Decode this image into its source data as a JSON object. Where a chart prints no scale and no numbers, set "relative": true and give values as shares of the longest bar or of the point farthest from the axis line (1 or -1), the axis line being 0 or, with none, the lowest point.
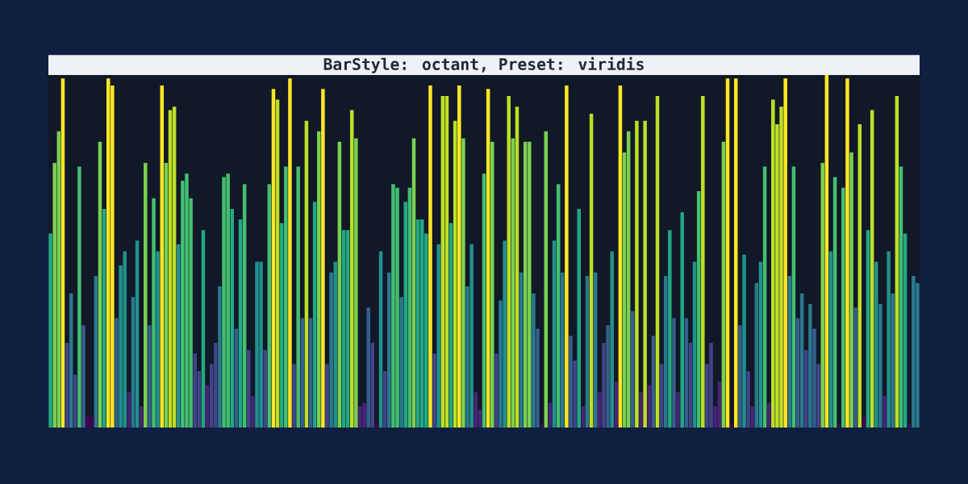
{
  "chart_data": {
    "type": "bar",
    "title": "BarStyle: octant, Preset: viridis",
    "relative": true,
    "categories": [
      null,
      null,
      null,
      null,
      null,
      null,
      null,
      null,
      null,
      null,
      null,
      null,
      null,
      null,
      null,
      null,
      null,
      null,
      null,
      null,
      null,
      null,
      null,
      null,
      null,
      null,
      null,
      null,
      null,
      null,
      null,
      null,
      null,
      null,
      null,
      null,
      null,
      null,
      null,
      null,
      null,
      null,
      null,
      null,
      null,
      null,
      null,
      null,
      null,
      null,
      null,
      null,
      null,
      null,
      null,
      null,
      null,
      null,
      null,
      null,
      null,
      null,
      null,
      null,
      null,
      null,
      null,
      null,
      null,
      null,
      null,
      null,
      null,
      null,
      null,
      null,
      null,
      null,
      null,
      null,
      null,
      null,
      null,
      null,
      null,
      null,
      null,
      null,
      null,
      null,
      null,
      null,
      null,
      null,
      null,
      null,
      null,
      null,
      null,
      null,
      null,
      null,
      null,
      null,
      null,
      null,
      null,
      null,
      null,
      null,
      null,
      null,
      null,
      null,
      null,
      null,
      null,
      null,
      null,
      null,
      null,
      null,
      null,
      null,
      null,
      null,
      null,
      null,
      null,
      null,
      null,
      null,
      null,
      null,
      null,
      null,
      null,
      null,
      null,
      null,
      null,
      null,
      null,
      null,
      null,
      null,
      null,
      null,
      null,
      null,
      null,
      null,
      null,
      null,
      null,
      null,
      null,
      null,
      null,
      null,
      null,
      null,
      null,
      null,
      null,
      null,
      null,
      null,
      null,
      null,
      null,
      null,
      null,
      null,
      null,
      null,
      null,
      null,
      null,
      null,
      null,
      null,
      null,
      null,
      null,
      null,
      null,
      null,
      null,
      null,
      null,
      null,
      null,
      null,
      null,
      null,
      null,
      null,
      null,
      null,
      null,
      null,
      null,
      null,
      null,
      null,
      null,
      null,
      null,
      null,
      null
    ],
    "values": [
      0.55,
      0.75,
      0.84,
      0.99,
      0.24,
      0.38,
      0.15,
      0.74,
      0.29,
      0.03,
      0.03,
      0.43,
      0.81,
      0.62,
      0.99,
      0.97,
      0.31,
      0.46,
      0.5,
      0.1,
      0.37,
      0.53,
      0.06,
      0.75,
      0.29,
      0.65,
      0.5,
      0.97,
      0.75,
      0.9,
      0.91,
      0.52,
      0.7,
      0.72,
      0.65,
      0.21,
      0.16,
      0.56,
      0.12,
      0.18,
      0.24,
      0.4,
      0.71,
      0.72,
      0.62,
      0.28,
      0.59,
      0.69,
      0.22,
      0.09,
      0.47,
      0.47,
      0.22,
      0.69,
      0.96,
      0.93,
      0.58,
      0.74,
      0.99,
      0.18,
      0.74,
      0.31,
      0.87,
      0.31,
      0.64,
      0.84,
      0.96,
      0.18,
      0.44,
      0.47,
      0.81,
      0.56,
      0.56,
      0.9,
      0.82,
      0.06,
      0.07,
      0.34,
      0.24,
      0.01,
      0.5,
      0.16,
      0.44,
      0.69,
      0.68,
      0.37,
      0.64,
      0.68,
      0.82,
      0.59,
      0.59,
      0.55,
      0.97,
      0.21,
      0.52,
      0.94,
      0.94,
      0.58,
      0.87,
      0.97,
      0.82,
      0.4,
      0.52,
      0.1,
      0.05,
      0.72,
      0.96,
      0.81,
      0.21,
      0.36,
      0.53,
      0.94,
      0.82,
      0.91,
      0.44,
      0.81,
      0.81,
      0.38,
      0.28,
      0.01,
      0.84,
      0.07,
      0.53,
      0.69,
      0.44,
      0.97,
      0.26,
      0.19,
      0.62,
      0.06,
      0.43,
      0.89,
      0.44,
      0.1,
      0.24,
      0.29,
      0.5,
      0.13,
      0.97,
      0.78,
      0.84,
      0.33,
      0.87,
      0.1,
      0.87,
      0.12,
      0.26,
      0.94,
      0.18,
      0.43,
      0.56,
      0.31,
      0.1,
      0.61,
      0.31,
      0.24,
      0.47,
      0.67,
      0.94,
      0.18,
      0.24,
      0.06,
      0.13,
      0.81,
      0.99,
      0.01,
      0.99,
      0.29,
      0.49,
      0.16,
      0.06,
      0.41,
      0.47,
      0.74,
      0.07,
      0.93,
      0.86,
      0.91,
      0.99,
      0.43,
      0.74,
      0.31,
      0.38,
      0.22,
      0.35,
      0.28,
      0.18,
      0.75,
      1,
      0.5,
      0.71,
      0.01,
      0.68,
      0.99,
      0.78,
      0.34,
      0.86,
      0.03,
      0.56,
      0.9,
      0.47,
      0.35,
      0.09,
      0.5,
      0.38,
      0.94,
      0.74,
      0.55,
      0.01,
      0.43,
      0.41
    ],
    "colors": [
      "#22a884",
      "#7ad151",
      "#7ad151",
      "#fde725",
      "#414487",
      "#2a788e",
      "#414487",
      "#44bf70",
      "#355f8d",
      "#440154",
      "#440154",
      "#2a788e",
      "#7ad151",
      "#22a884",
      "#fde725",
      "#fde725",
      "#355f8d",
      "#21918c",
      "#21918c",
      "#482475",
      "#2a788e",
      "#21918c",
      "#482475",
      "#7ad151",
      "#355f8d",
      "#44bf70",
      "#21918c",
      "#fde725",
      "#7ad151",
      "#bddf26",
      "#bddf26",
      "#21918c",
      "#44bf70",
      "#44bf70",
      "#44bf70",
      "#414487",
      "#414487",
      "#22a884",
      "#482475",
      "#414487",
      "#414487",
      "#2a788e",
      "#44bf70",
      "#44bf70",
      "#22a884",
      "#355f8d",
      "#22a884",
      "#44bf70",
      "#414487",
      "#482475",
      "#21918c",
      "#21918c",
      "#414487",
      "#44bf70",
      "#fde725",
      "#bddf26",
      "#22a884",
      "#44bf70",
      "#fde725",
      "#414487",
      "#44bf70",
      "#355f8d",
      "#bddf26",
      "#355f8d",
      "#22a884",
      "#7ad151",
      "#fde725",
      "#414487",
      "#2a788e",
      "#21918c",
      "#7ad151",
      "#22a884",
      "#22a884",
      "#bddf26",
      "#7ad151",
      "#482475",
      "#482475",
      "#355f8d",
      "#414487",
      "#440154",
      "#21918c",
      "#414487",
      "#2a788e",
      "#44bf70",
      "#44bf70",
      "#2a788e",
      "#22a884",
      "#44bf70",
      "#7ad151",
      "#22a884",
      "#22a884",
      "#22a884",
      "#fde725",
      "#414487",
      "#21918c",
      "#bddf26",
      "#bddf26",
      "#22a884",
      "#bddf26",
      "#fde725",
      "#7ad151",
      "#2a788e",
      "#21918c",
      "#482475",
      "#482475",
      "#44bf70",
      "#fde725",
      "#7ad151",
      "#414487",
      "#2a788e",
      "#21918c",
      "#bddf26",
      "#7ad151",
      "#bddf26",
      "#2a788e",
      "#7ad151",
      "#7ad151",
      "#2a788e",
      "#355f8d",
      "#440154",
      "#7ad151",
      "#482475",
      "#21918c",
      "#44bf70",
      "#2a788e",
      "#fde725",
      "#355f8d",
      "#414487",
      "#22a884",
      "#482475",
      "#2a788e",
      "#bddf26",
      "#2a788e",
      "#482475",
      "#414487",
      "#355f8d",
      "#21918c",
      "#482475",
      "#fde725",
      "#7ad151",
      "#7ad151",
      "#355f8d",
      "#bddf26",
      "#482475",
      "#bddf26",
      "#482475",
      "#355f8d",
      "#bddf26",
      "#414487",
      "#2a788e",
      "#22a884",
      "#355f8d",
      "#482475",
      "#22a884",
      "#355f8d",
      "#414487",
      "#21918c",
      "#44bf70",
      "#bddf26",
      "#414487",
      "#414487",
      "#482475",
      "#482475",
      "#7ad151",
      "#fde725",
      "#440154",
      "#fde725",
      "#355f8d",
      "#21918c",
      "#414487",
      "#482475",
      "#2a788e",
      "#21918c",
      "#44bf70",
      "#482475",
      "#bddf26",
      "#bddf26",
      "#bddf26",
      "#fde725",
      "#2a788e",
      "#44bf70",
      "#355f8d",
      "#2a788e",
      "#414487",
      "#2a788e",
      "#355f8d",
      "#414487",
      "#7ad151",
      "#fde725",
      "#21918c",
      "#44bf70",
      "#440154",
      "#44bf70",
      "#fde725",
      "#7ad151",
      "#355f8d",
      "#bddf26",
      "#440154",
      "#22a884",
      "#bddf26",
      "#21918c",
      "#2a788e",
      "#482475",
      "#21918c",
      "#2a788e",
      "#bddf26",
      "#44bf70",
      "#22a884",
      "#440154",
      "#2a788e",
      "#2a788e"
    ]
  }
}
